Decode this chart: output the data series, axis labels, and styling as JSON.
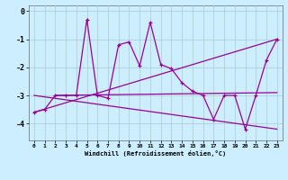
{
  "xlabel": "Windchill (Refroidissement éolien,°C)",
  "background_color": "#cceeff",
  "line_color": "#990099",
  "hours": [
    0,
    1,
    2,
    3,
    4,
    5,
    6,
    7,
    8,
    9,
    10,
    11,
    12,
    13,
    14,
    15,
    16,
    17,
    18,
    19,
    20,
    21,
    22,
    23
  ],
  "series_main": [
    -3.6,
    -3.5,
    -3.0,
    -3.0,
    -3.0,
    -0.3,
    -3.0,
    -3.1,
    -1.2,
    -1.1,
    -1.95,
    -0.4,
    -1.9,
    -2.05,
    -2.55,
    -2.85,
    -3.0,
    -3.85,
    -3.0,
    -3.0,
    -4.2,
    -3.0,
    -1.75,
    -1.0
  ],
  "trend_up": [
    0,
    23,
    -3.6,
    -1.0
  ],
  "trend_down": [
    0,
    23,
    -3.0,
    -4.2
  ],
  "trend_flat": [
    2,
    23,
    -3.0,
    -2.9
  ],
  "ylim": [
    -4.6,
    0.2
  ],
  "yticks": [
    0,
    -1,
    -2,
    -3,
    -4
  ],
  "grid_color": "#aacccc"
}
